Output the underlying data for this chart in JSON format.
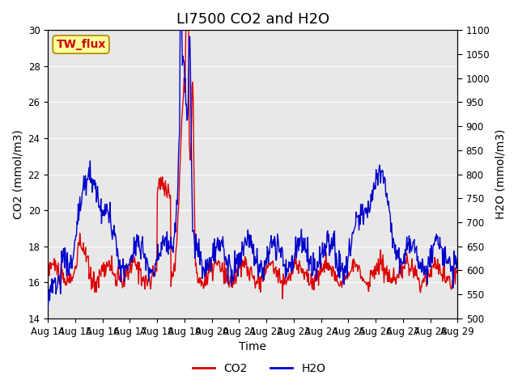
{
  "title": "LI7500 CO2 and H2O",
  "xlabel": "Time",
  "ylabel_left": "CO2 (mmol/m3)",
  "ylabel_right": "H2O (mmol/m3)",
  "site_label": "TW_flux",
  "site_label_color": "#cc0000",
  "site_label_bg": "#ffff99",
  "site_label_border": "#aa8800",
  "xlim_days": [
    0,
    15
  ],
  "ylim_left": [
    14,
    30
  ],
  "ylim_right": [
    500,
    1100
  ],
  "yticks_left": [
    14,
    16,
    18,
    20,
    22,
    24,
    26,
    28,
    30
  ],
  "yticks_right": [
    500,
    550,
    600,
    650,
    700,
    750,
    800,
    850,
    900,
    950,
    1000,
    1050,
    1100
  ],
  "xtick_labels": [
    "Aug 14",
    "Aug 15",
    "Aug 16",
    "Aug 17",
    "Aug 18",
    "Aug 19",
    "Aug 20",
    "Aug 21",
    "Aug 22",
    "Aug 23",
    "Aug 24",
    "Aug 25",
    "Aug 26",
    "Aug 27",
    "Aug 28",
    "Aug 29"
  ],
  "co2_color": "#dd0000",
  "h2o_color": "#0000cc",
  "bg_color": "#e8e8e8",
  "grid_color": "#ffffff",
  "title_fontsize": 13,
  "axis_fontsize": 10,
  "tick_fontsize": 8.5,
  "legend_fontsize": 10
}
